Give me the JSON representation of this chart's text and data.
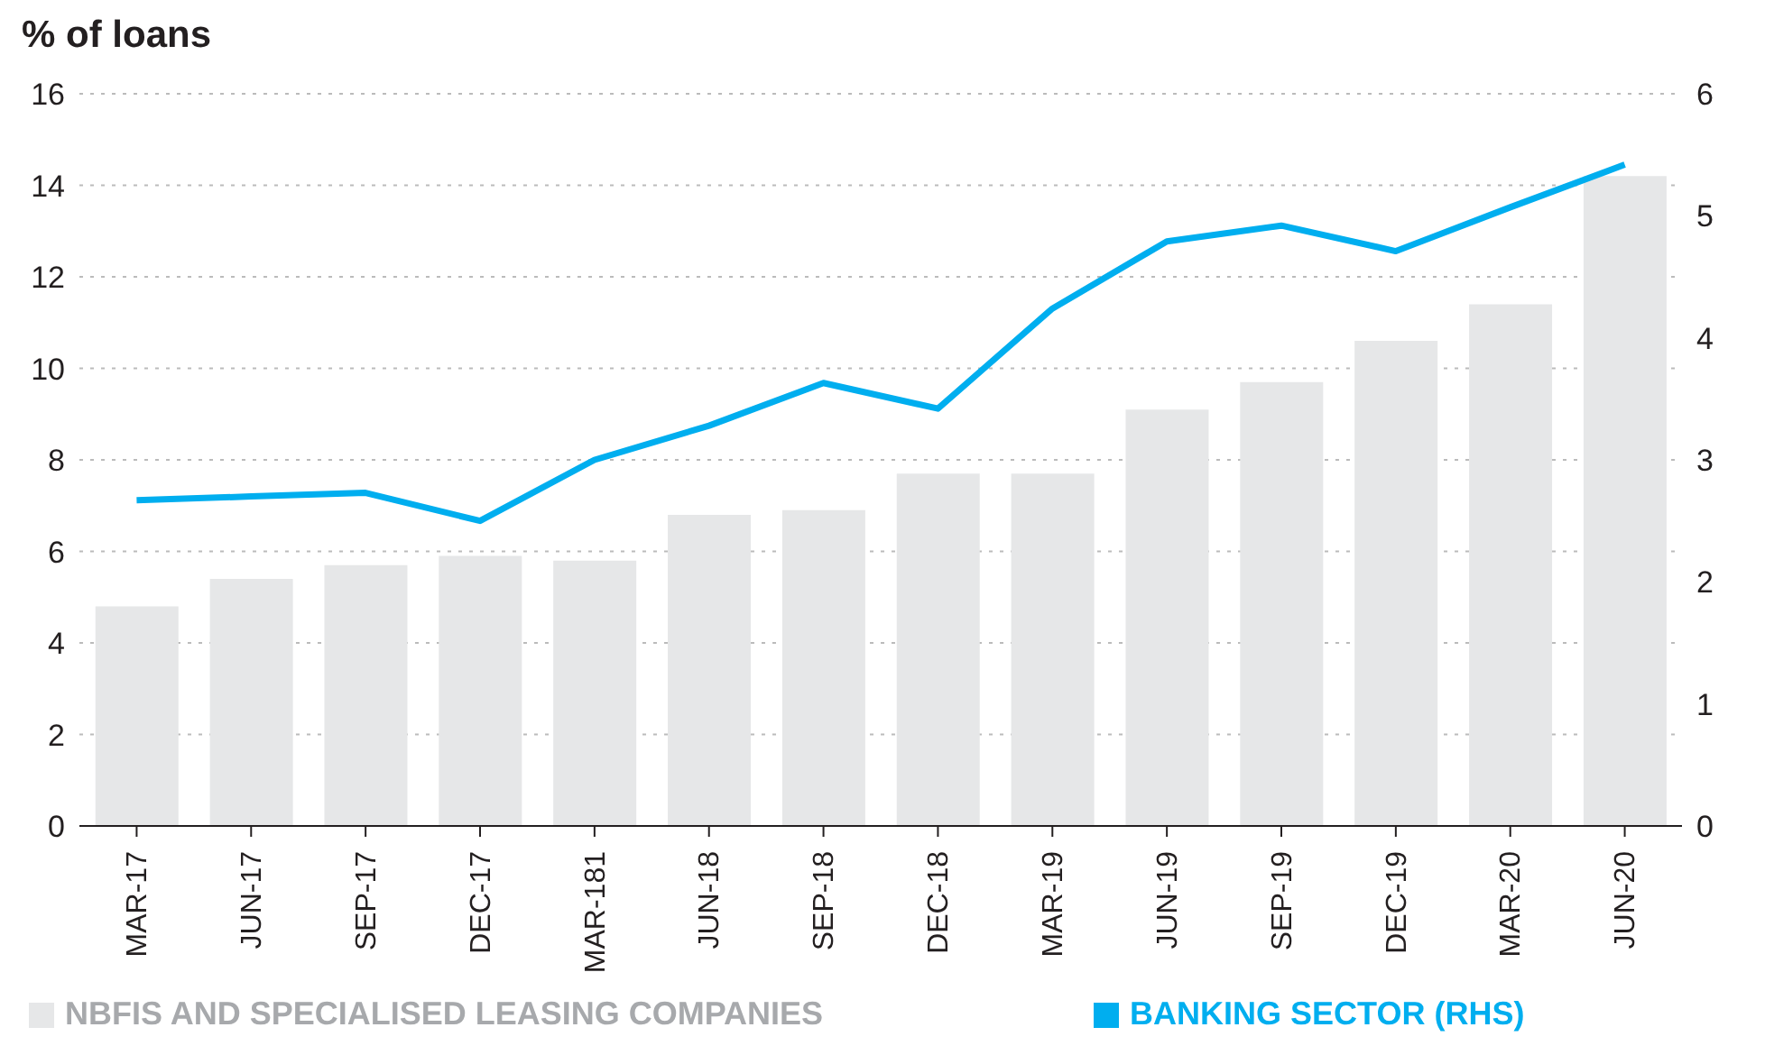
{
  "chart_data": {
    "type": "bar",
    "title": "% of loans",
    "categories": [
      "MAR-17",
      "JUN-17",
      "SEP-17",
      "DEC-17",
      "MAR-181",
      "JUN-18",
      "SEP-18",
      "DEC-18",
      "MAR-19",
      "JUN-19",
      "SEP-19",
      "DEC-19",
      "MAR-20",
      "JUN-20"
    ],
    "series": [
      {
        "name": "NBFIS AND SPECIALISED LEASING COMPANIES",
        "color": "#e6e7e8",
        "values": [
          4.8,
          5.4,
          5.7,
          5.9,
          5.8,
          6.8,
          6.9,
          7.7,
          7.7,
          9.1,
          9.7,
          10.6,
          11.4,
          14.2
        ]
      },
      {
        "name": "BANKING SECTOR (RHS)",
        "type": "line",
        "axis": "y2",
        "color": "#00aeef",
        "values": [
          2.67,
          2.7,
          2.73,
          2.5,
          3.0,
          3.28,
          3.63,
          3.42,
          4.24,
          4.79,
          4.92,
          4.71,
          5.07,
          5.42
        ]
      }
    ],
    "ylim": [
      0,
      16
    ],
    "yticks": [
      0,
      2,
      4,
      6,
      8,
      10,
      12,
      14,
      16
    ],
    "y2lim": [
      0,
      6
    ],
    "y2ticks": [
      0,
      1,
      2,
      3,
      4,
      5,
      6
    ],
    "grid": "y",
    "legend": "bottom",
    "marker": "none",
    "line_style": "solid"
  }
}
